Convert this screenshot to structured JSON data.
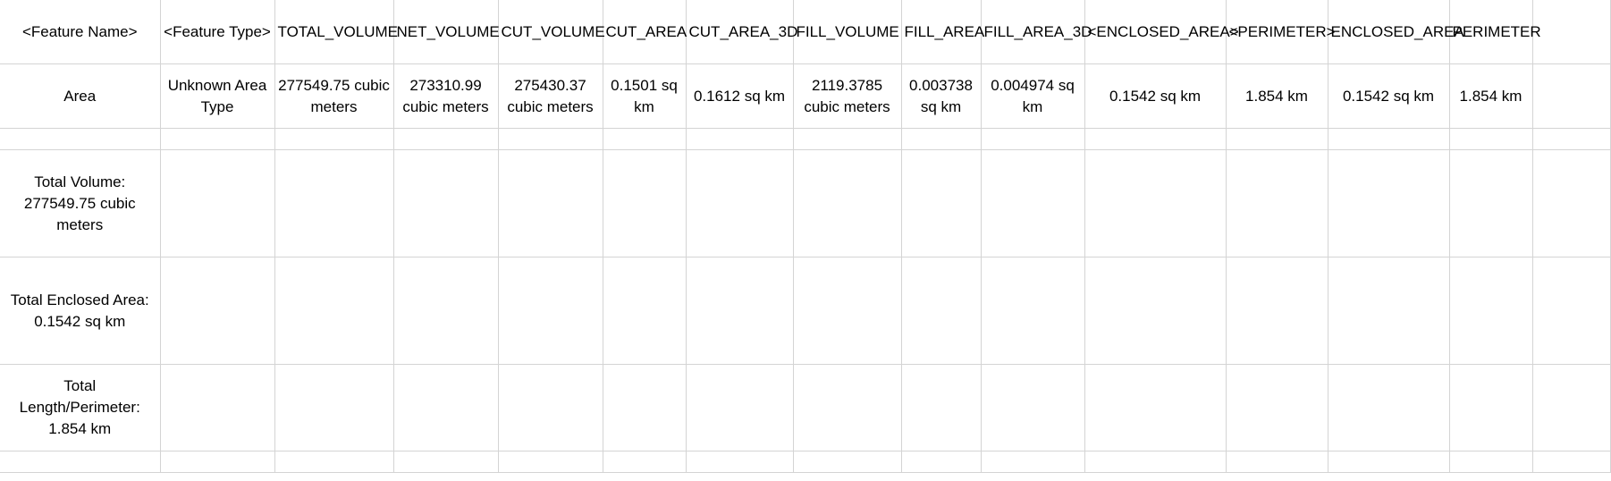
{
  "header": [
    "<Feature Name>",
    "<Feature Type>",
    "TOTAL_VOLUME",
    "NET_VOLUME",
    "CUT_VOLUME",
    "CUT_AREA",
    "CUT_AREA_3D",
    "FILL_VOLUME",
    "FILL_AREA",
    "FILL_AREA_3D",
    "<ENCLOSED_AREA>",
    "<PERIMETER>",
    "ENCLOSED_AREA",
    "PERIMETER"
  ],
  "row": [
    "Area",
    "Unknown Area Type",
    "277549.75 cubic meters",
    "273310.99 cubic meters",
    "275430.37 cubic meters",
    "0.1501 sq km",
    "0.1612 sq km",
    "2119.3785 cubic meters",
    "0.003738 sq km",
    "0.004974 sq km",
    "0.1542 sq km",
    "1.854 km",
    "0.1542 sq km",
    "1.854 km"
  ],
  "summary": {
    "total_volume": "Total Volume: 277549.75 cubic meters",
    "total_enclosed_area": "Total Enclosed Area: 0.1542 sq km",
    "total_length_perimeter": "Total Length/Perimeter: 1.854 km"
  }
}
